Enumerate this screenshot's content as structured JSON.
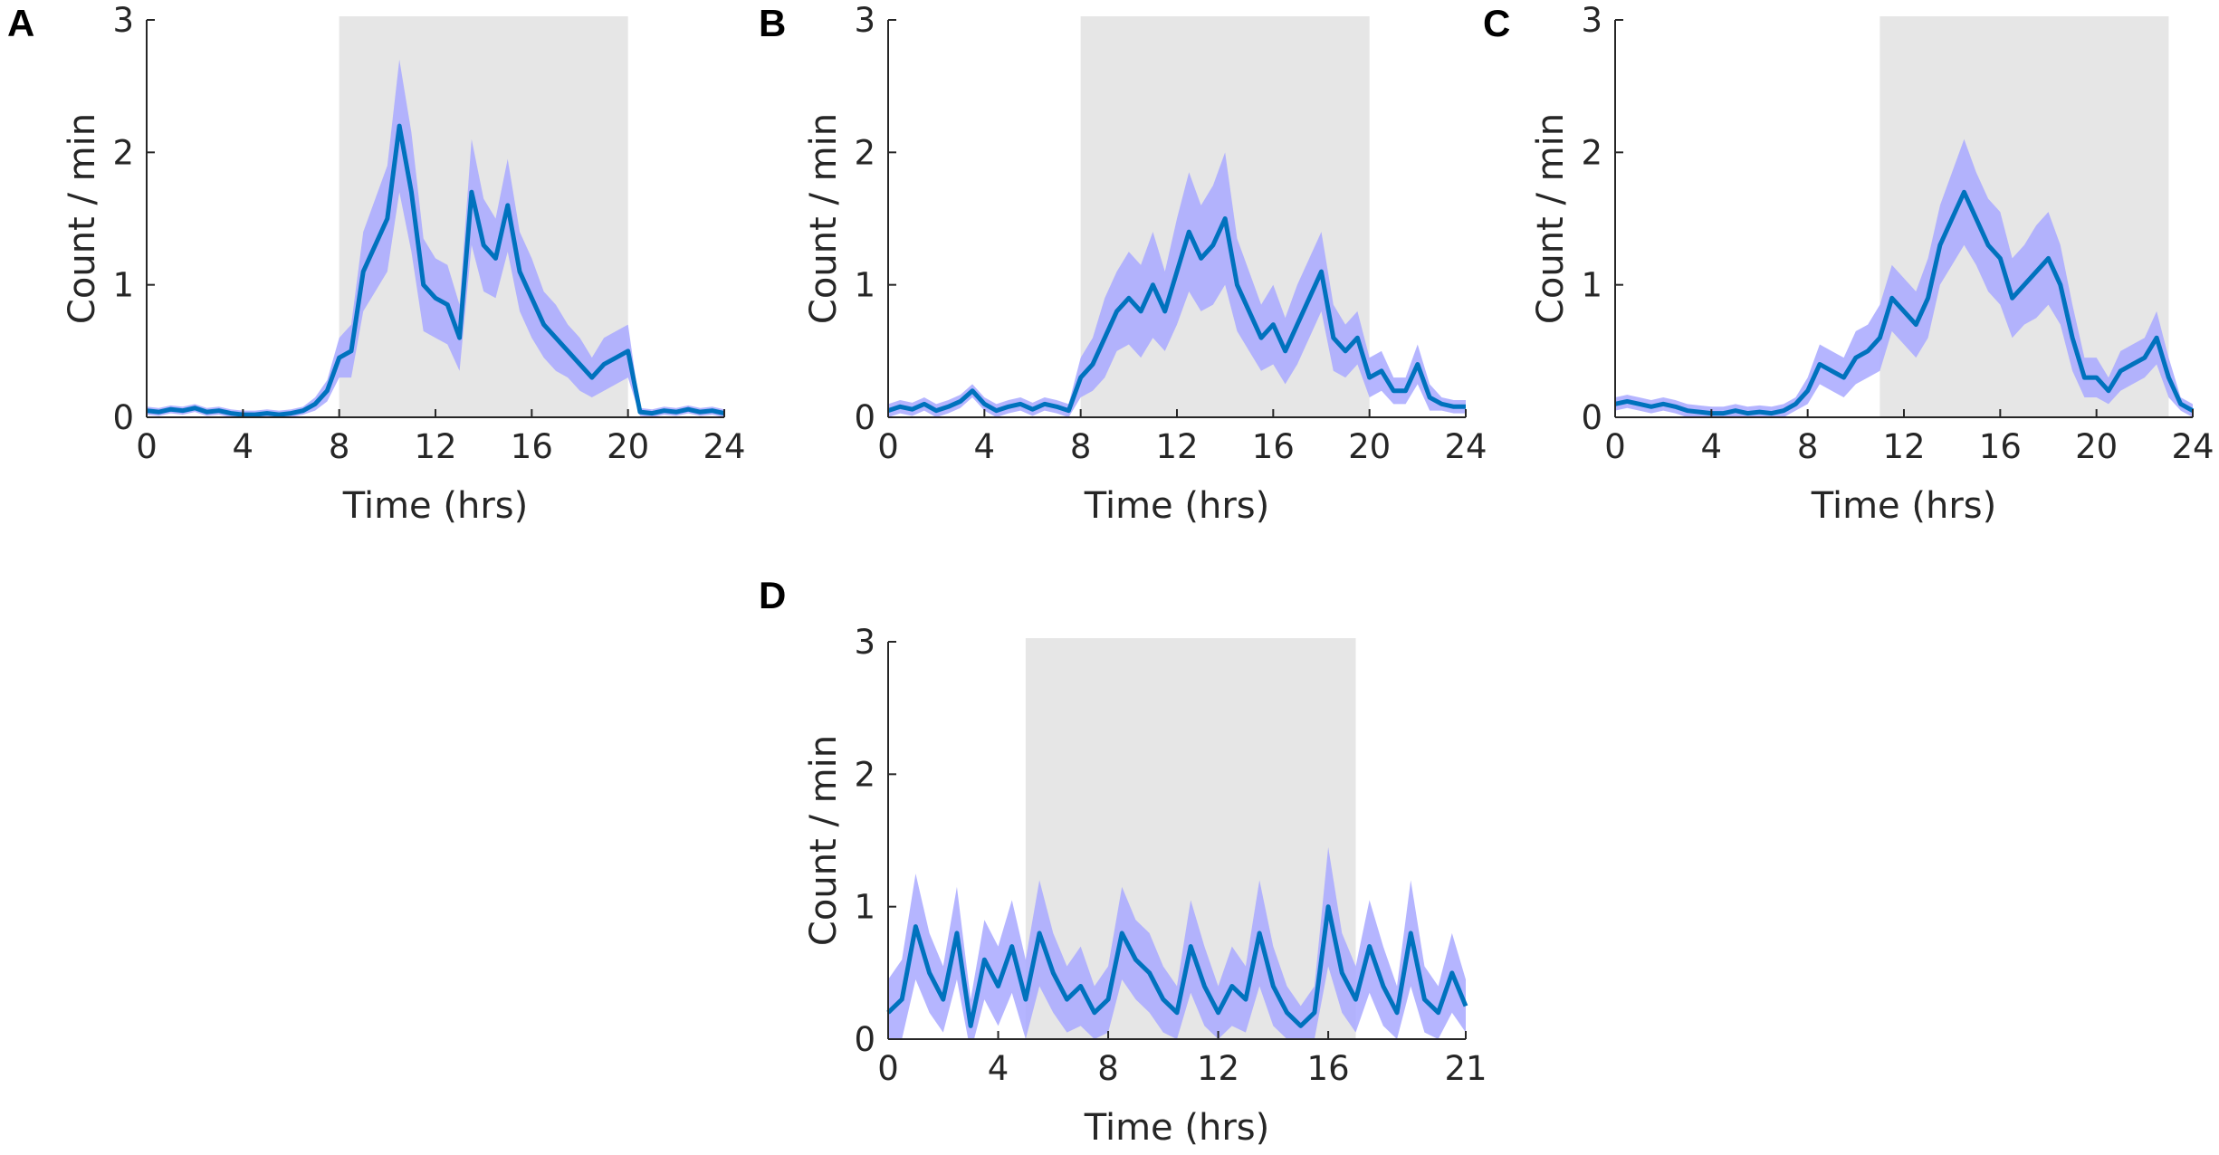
{
  "chart_data": [
    {
      "type": "line",
      "panel": "A",
      "xlabel": "Time (hrs)",
      "ylabel": "Count / min",
      "xlim": [
        0,
        24
      ],
      "xticks": [
        0,
        4,
        8,
        12,
        16,
        20,
        24
      ],
      "ylim": [
        0,
        3
      ],
      "yticks": [
        0,
        1,
        2,
        3
      ],
      "shade": [
        8,
        20
      ],
      "shade_color": "#e6e6e6",
      "color": "#0072bd",
      "band_color": "#a8a8ff",
      "x": [
        0,
        0.5,
        1,
        1.5,
        2,
        2.5,
        3,
        3.5,
        4,
        4.5,
        5,
        5.5,
        6,
        6.5,
        7,
        7.5,
        8,
        8.5,
        9,
        9.5,
        10,
        10.5,
        11,
        11.5,
        12,
        12.5,
        13,
        13.5,
        14,
        14.5,
        15,
        15.5,
        16,
        16.5,
        17,
        17.5,
        18,
        18.5,
        19,
        19.5,
        20,
        20.5,
        21,
        21.5,
        22,
        22.5,
        23,
        23.5,
        24
      ],
      "values": [
        0.05,
        0.04,
        0.06,
        0.05,
        0.07,
        0.04,
        0.05,
        0.03,
        0.02,
        0.02,
        0.03,
        0.02,
        0.03,
        0.05,
        0.1,
        0.2,
        0.45,
        0.5,
        1.1,
        1.3,
        1.5,
        2.2,
        1.7,
        1.0,
        0.9,
        0.85,
        0.6,
        1.7,
        1.3,
        1.2,
        1.6,
        1.1,
        0.9,
        0.7,
        0.6,
        0.5,
        0.4,
        0.3,
        0.4,
        0.45,
        0.5,
        0.04,
        0.03,
        0.05,
        0.04,
        0.06,
        0.04,
        0.05,
        0.03
      ],
      "errors": [
        0.03,
        0.03,
        0.03,
        0.03,
        0.03,
        0.03,
        0.03,
        0.03,
        0.03,
        0.03,
        0.03,
        0.03,
        0.03,
        0.03,
        0.05,
        0.08,
        0.15,
        0.2,
        0.3,
        0.35,
        0.4,
        0.5,
        0.45,
        0.35,
        0.3,
        0.3,
        0.25,
        0.4,
        0.35,
        0.3,
        0.35,
        0.3,
        0.3,
        0.25,
        0.25,
        0.2,
        0.2,
        0.15,
        0.2,
        0.2,
        0.2,
        0.03,
        0.03,
        0.03,
        0.03,
        0.03,
        0.03,
        0.03,
        0.03
      ]
    },
    {
      "type": "line",
      "panel": "B",
      "xlabel": "Time (hrs)",
      "ylabel": "Count / min",
      "xlim": [
        0,
        24
      ],
      "xticks": [
        0,
        4,
        8,
        12,
        16,
        20,
        24
      ],
      "ylim": [
        0,
        3
      ],
      "yticks": [
        0,
        1,
        2,
        3
      ],
      "shade": [
        8,
        20
      ],
      "shade_color": "#e6e6e6",
      "color": "#0072bd",
      "band_color": "#a8a8ff",
      "x": [
        0,
        0.5,
        1,
        1.5,
        2,
        2.5,
        3,
        3.5,
        4,
        4.5,
        5,
        5.5,
        6,
        6.5,
        7,
        7.5,
        8,
        8.5,
        9,
        9.5,
        10,
        10.5,
        11,
        11.5,
        12,
        12.5,
        13,
        13.5,
        14,
        14.5,
        15,
        15.5,
        16,
        16.5,
        17,
        17.5,
        18,
        18.5,
        19,
        19.5,
        20,
        20.5,
        21,
        21.5,
        22,
        22.5,
        23,
        23.5,
        24
      ],
      "values": [
        0.05,
        0.08,
        0.06,
        0.1,
        0.05,
        0.08,
        0.12,
        0.2,
        0.1,
        0.05,
        0.08,
        0.1,
        0.06,
        0.1,
        0.08,
        0.05,
        0.3,
        0.4,
        0.6,
        0.8,
        0.9,
        0.8,
        1.0,
        0.8,
        1.1,
        1.4,
        1.2,
        1.3,
        1.5,
        1.0,
        0.8,
        0.6,
        0.7,
        0.5,
        0.7,
        0.9,
        1.1,
        0.6,
        0.5,
        0.6,
        0.3,
        0.35,
        0.2,
        0.2,
        0.4,
        0.15,
        0.1,
        0.08,
        0.08
      ],
      "errors": [
        0.05,
        0.05,
        0.05,
        0.05,
        0.05,
        0.05,
        0.05,
        0.05,
        0.05,
        0.05,
        0.05,
        0.05,
        0.05,
        0.05,
        0.05,
        0.05,
        0.15,
        0.2,
        0.3,
        0.3,
        0.35,
        0.35,
        0.4,
        0.3,
        0.4,
        0.45,
        0.4,
        0.45,
        0.5,
        0.35,
        0.3,
        0.25,
        0.3,
        0.25,
        0.3,
        0.3,
        0.3,
        0.25,
        0.2,
        0.2,
        0.15,
        0.15,
        0.1,
        0.1,
        0.15,
        0.1,
        0.05,
        0.05,
        0.05
      ]
    },
    {
      "type": "line",
      "panel": "C",
      "xlabel": "Time (hrs)",
      "ylabel": "Count / min",
      "xlim": [
        0,
        24
      ],
      "xticks": [
        0,
        4,
        8,
        12,
        16,
        20,
        24
      ],
      "ylim": [
        0,
        3
      ],
      "yticks": [
        0,
        1,
        2,
        3
      ],
      "shade": [
        11,
        23
      ],
      "shade_color": "#e6e6e6",
      "color": "#0072bd",
      "band_color": "#a8a8ff",
      "x": [
        0,
        0.5,
        1,
        1.5,
        2,
        2.5,
        3,
        3.5,
        4,
        4.5,
        5,
        5.5,
        6,
        6.5,
        7,
        7.5,
        8,
        8.5,
        9,
        9.5,
        10,
        10.5,
        11,
        11.5,
        12,
        12.5,
        13,
        13.5,
        14,
        14.5,
        15,
        15.5,
        16,
        16.5,
        17,
        17.5,
        18,
        18.5,
        19,
        19.5,
        20,
        20.5,
        21,
        21.5,
        22,
        22.5,
        23,
        23.5,
        24
      ],
      "values": [
        0.1,
        0.12,
        0.1,
        0.08,
        0.1,
        0.08,
        0.05,
        0.04,
        0.03,
        0.03,
        0.05,
        0.03,
        0.04,
        0.03,
        0.05,
        0.1,
        0.2,
        0.4,
        0.35,
        0.3,
        0.45,
        0.5,
        0.6,
        0.9,
        0.8,
        0.7,
        0.9,
        1.3,
        1.5,
        1.7,
        1.5,
        1.3,
        1.2,
        0.9,
        1.0,
        1.1,
        1.2,
        1.0,
        0.6,
        0.3,
        0.3,
        0.2,
        0.35,
        0.4,
        0.45,
        0.6,
        0.3,
        0.1,
        0.05
      ],
      "errors": [
        0.05,
        0.05,
        0.05,
        0.05,
        0.05,
        0.05,
        0.05,
        0.05,
        0.05,
        0.05,
        0.05,
        0.05,
        0.05,
        0.05,
        0.05,
        0.05,
        0.1,
        0.15,
        0.15,
        0.15,
        0.2,
        0.2,
        0.25,
        0.25,
        0.25,
        0.25,
        0.3,
        0.3,
        0.35,
        0.4,
        0.35,
        0.35,
        0.35,
        0.3,
        0.3,
        0.35,
        0.35,
        0.3,
        0.25,
        0.15,
        0.15,
        0.1,
        0.15,
        0.15,
        0.15,
        0.2,
        0.15,
        0.05,
        0.05
      ]
    },
    {
      "type": "line",
      "panel": "D",
      "xlabel": "Time (hrs)",
      "ylabel": "Count / min",
      "xlim": [
        0,
        21
      ],
      "xticks": [
        0,
        4,
        8,
        12,
        16,
        21
      ],
      "ylim": [
        0,
        3
      ],
      "yticks": [
        0,
        1,
        2,
        3
      ],
      "shade": [
        5,
        17
      ],
      "shade_color": "#e6e6e6",
      "color": "#0072bd",
      "band_color": "#a8a8ff",
      "x": [
        0,
        0.5,
        1,
        1.5,
        2,
        2.5,
        3,
        3.5,
        4,
        4.5,
        5,
        5.5,
        6,
        6.5,
        7,
        7.5,
        8,
        8.5,
        9,
        9.5,
        10,
        10.5,
        11,
        11.5,
        12,
        12.5,
        13,
        13.5,
        14,
        14.5,
        15,
        15.5,
        16,
        16.5,
        17,
        17.5,
        18,
        18.5,
        19,
        19.5,
        20,
        20.5,
        21
      ],
      "values": [
        0.2,
        0.3,
        0.85,
        0.5,
        0.3,
        0.8,
        0.1,
        0.6,
        0.4,
        0.7,
        0.3,
        0.8,
        0.5,
        0.3,
        0.4,
        0.2,
        0.3,
        0.8,
        0.6,
        0.5,
        0.3,
        0.2,
        0.7,
        0.4,
        0.2,
        0.4,
        0.3,
        0.8,
        0.4,
        0.2,
        0.1,
        0.2,
        1.0,
        0.5,
        0.3,
        0.7,
        0.4,
        0.2,
        0.8,
        0.3,
        0.2,
        0.5,
        0.25
      ],
      "errors": [
        0.25,
        0.3,
        0.4,
        0.3,
        0.25,
        0.35,
        0.2,
        0.3,
        0.3,
        0.35,
        0.3,
        0.4,
        0.3,
        0.25,
        0.3,
        0.2,
        0.25,
        0.35,
        0.3,
        0.3,
        0.25,
        0.2,
        0.35,
        0.3,
        0.2,
        0.3,
        0.25,
        0.4,
        0.3,
        0.2,
        0.15,
        0.2,
        0.45,
        0.3,
        0.25,
        0.35,
        0.3,
        0.2,
        0.4,
        0.25,
        0.2,
        0.3,
        0.2
      ]
    }
  ]
}
